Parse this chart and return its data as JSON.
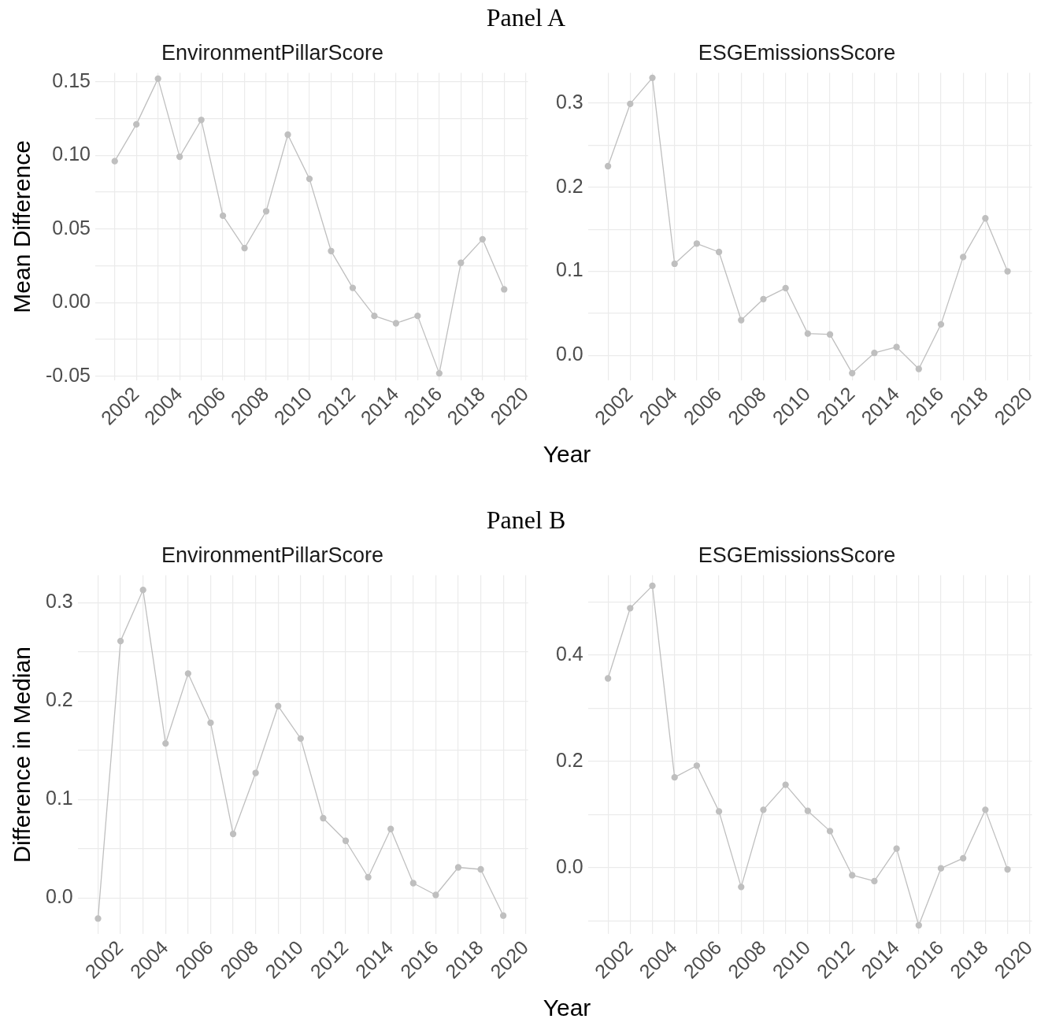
{
  "chart_data": [
    {
      "type": "line",
      "title": "Panel A",
      "subtitle": "EnvironmentPillarScore",
      "xlabel": "Year",
      "ylabel": "Mean Difference",
      "marker": "circle",
      "grid": true,
      "x": [
        2001,
        2002,
        2003,
        2004,
        2005,
        2006,
        2007,
        2008,
        2009,
        2010,
        2011,
        2012,
        2013,
        2014,
        2015,
        2016,
        2017,
        2018,
        2019
      ],
      "series": [
        {
          "color": "#bfbfbf",
          "values": [
            0.096,
            0.121,
            0.152,
            0.099,
            0.124,
            0.059,
            0.037,
            0.062,
            0.114,
            0.084,
            0.035,
            0.01,
            -0.009,
            -0.014,
            -0.009,
            -0.048,
            0.027,
            0.043,
            0.009
          ]
        }
      ],
      "xlim": [
        2000.1,
        2020.1
      ],
      "xticks": [
        {
          "value": 2001,
          "label": null
        },
        2002,
        {
          "value": 2003,
          "label": null
        },
        2004,
        {
          "value": 2005,
          "label": null
        },
        2006,
        {
          "value": 2007,
          "label": null
        },
        2008,
        {
          "value": 2009,
          "label": null
        },
        2010,
        {
          "value": 2011,
          "label": null
        },
        2012,
        {
          "value": 2013,
          "label": null
        },
        2014,
        {
          "value": 2015,
          "label": null
        },
        2016,
        {
          "value": 2017,
          "label": null
        },
        2018,
        {
          "value": 2019,
          "label": null
        },
        2020
      ],
      "ylim": [
        -0.053,
        0.156
      ],
      "yticks": [
        {
          "value": -0.05,
          "label": "-0.05"
        },
        {
          "value": -0.025,
          "label": null
        },
        {
          "value": 0,
          "label": "0.00"
        },
        {
          "value": 0.025,
          "label": null
        },
        {
          "value": 0.05,
          "label": "0.05"
        },
        {
          "value": 0.075,
          "label": null
        },
        {
          "value": 0.1,
          "label": "0.10"
        },
        {
          "value": 0.125,
          "label": null
        },
        {
          "value": 0.15,
          "label": "0.15"
        }
      ]
    },
    {
      "type": "line",
      "subtitle": "ESGEmissionsScore",
      "marker": "circle",
      "grid": true,
      "x": [
        2001,
        2002,
        2003,
        2004,
        2005,
        2006,
        2007,
        2008,
        2009,
        2010,
        2011,
        2012,
        2013,
        2014,
        2015,
        2016,
        2017,
        2018,
        2019
      ],
      "series": [
        {
          "color": "#bfbfbf",
          "values": [
            0.225,
            0.299,
            0.33,
            0.109,
            0.133,
            0.123,
            0.042,
            0.067,
            0.08,
            0.026,
            0.025,
            -0.021,
            0.003,
            0.01,
            -0.016,
            0.037,
            0.117,
            0.163,
            0.1
          ]
        }
      ],
      "xlim": [
        2000.1,
        2020.1
      ],
      "xticks": [
        {
          "value": 2001,
          "label": null
        },
        2002,
        {
          "value": 2003,
          "label": null
        },
        2004,
        {
          "value": 2005,
          "label": null
        },
        2006,
        {
          "value": 2007,
          "label": null
        },
        2008,
        {
          "value": 2009,
          "label": null
        },
        2010,
        {
          "value": 2011,
          "label": null
        },
        2012,
        {
          "value": 2013,
          "label": null
        },
        2014,
        {
          "value": 2015,
          "label": null
        },
        2016,
        {
          "value": 2017,
          "label": null
        },
        2018,
        {
          "value": 2019,
          "label": null
        },
        2020
      ],
      "ylim": [
        -0.03,
        0.336
      ],
      "yticks": [
        {
          "value": 0,
          "label": "0.0"
        },
        {
          "value": 0.05,
          "label": null
        },
        {
          "value": 0.1,
          "label": "0.1"
        },
        {
          "value": 0.15,
          "label": null
        },
        {
          "value": 0.2,
          "label": "0.2"
        },
        {
          "value": 0.25,
          "label": null
        },
        {
          "value": 0.3,
          "label": "0.3"
        }
      ]
    },
    {
      "type": "line",
      "title": "Panel B",
      "subtitle": "EnvironmentPillarScore",
      "xlabel": "Year",
      "ylabel": "Difference in Median",
      "marker": "circle",
      "grid": true,
      "x": [
        2001,
        2002,
        2003,
        2004,
        2005,
        2006,
        2007,
        2008,
        2009,
        2010,
        2011,
        2012,
        2013,
        2014,
        2015,
        2016,
        2017,
        2018,
        2019
      ],
      "series": [
        {
          "color": "#bfbfbf",
          "values": [
            -0.021,
            0.261,
            0.313,
            0.157,
            0.228,
            0.178,
            0.065,
            0.127,
            0.195,
            0.162,
            0.081,
            0.058,
            0.021,
            0.07,
            0.015,
            0.003,
            0.031,
            0.029,
            -0.018
          ]
        }
      ],
      "xlim": [
        2000.1,
        2020.1
      ],
      "xticks": [
        {
          "value": 2001,
          "label": null
        },
        2002,
        {
          "value": 2003,
          "label": null
        },
        2004,
        {
          "value": 2005,
          "label": null
        },
        2006,
        {
          "value": 2007,
          "label": null
        },
        2008,
        {
          "value": 2009,
          "label": null
        },
        2010,
        {
          "value": 2011,
          "label": null
        },
        2012,
        {
          "value": 2013,
          "label": null
        },
        2014,
        {
          "value": 2015,
          "label": null
        },
        2016,
        {
          "value": 2017,
          "label": null
        },
        2018,
        {
          "value": 2019,
          "label": null
        },
        2020
      ],
      "ylim": [
        -0.037,
        0.328
      ],
      "yticks": [
        {
          "value": 0,
          "label": "0.0"
        },
        {
          "value": 0.05,
          "label": null
        },
        {
          "value": 0.1,
          "label": "0.1"
        },
        {
          "value": 0.15,
          "label": null
        },
        {
          "value": 0.2,
          "label": "0.2"
        },
        {
          "value": 0.25,
          "label": null
        },
        {
          "value": 0.3,
          "label": "0.3"
        }
      ]
    },
    {
      "type": "line",
      "subtitle": "ESGEmissionsScore",
      "marker": "circle",
      "grid": true,
      "x": [
        2001,
        2002,
        2003,
        2004,
        2005,
        2006,
        2007,
        2008,
        2009,
        2010,
        2011,
        2012,
        2013,
        2014,
        2015,
        2016,
        2017,
        2018,
        2019
      ],
      "series": [
        {
          "color": "#bfbfbf",
          "values": [
            0.356,
            0.488,
            0.53,
            0.17,
            0.192,
            0.106,
            -0.036,
            0.109,
            0.156,
            0.107,
            0.069,
            -0.014,
            -0.025,
            0.036,
            -0.108,
            -0.001,
            0.018,
            0.109,
            -0.003
          ]
        }
      ],
      "xlim": [
        2000.1,
        2020.1
      ],
      "xticks": [
        {
          "value": 2001,
          "label": null
        },
        2002,
        {
          "value": 2003,
          "label": null
        },
        2004,
        {
          "value": 2005,
          "label": null
        },
        2006,
        {
          "value": 2007,
          "label": null
        },
        2008,
        {
          "value": 2009,
          "label": null
        },
        2010,
        {
          "value": 2011,
          "label": null
        },
        2012,
        {
          "value": 2013,
          "label": null
        },
        2014,
        {
          "value": 2015,
          "label": null
        },
        2016,
        {
          "value": 2017,
          "label": null
        },
        2018,
        {
          "value": 2019,
          "label": null
        },
        2020
      ],
      "ylim": [
        -0.125,
        0.55
      ],
      "yticks": [
        {
          "value": -0.1,
          "label": null
        },
        {
          "value": 0,
          "label": "0.0"
        },
        {
          "value": 0.1,
          "label": null
        },
        {
          "value": 0.2,
          "label": "0.2"
        },
        {
          "value": 0.3,
          "label": null
        },
        {
          "value": 0.4,
          "label": "0.4"
        },
        {
          "value": 0.5,
          "label": null
        }
      ]
    }
  ]
}
